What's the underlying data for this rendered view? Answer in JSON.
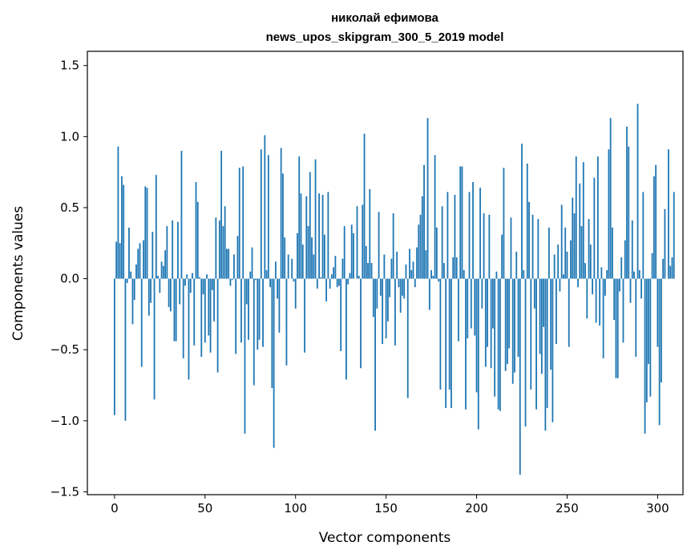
{
  "chart_data": {
    "type": "bar",
    "title_line1": "николай ефимова",
    "title_line2": "news_upos_skipgram_300_5_2019 model",
    "xlabel": "Vector components",
    "ylabel": "Components values",
    "xlim": [
      -15,
      314
    ],
    "ylim": [
      -1.52,
      1.6
    ],
    "xticks": [
      0,
      50,
      100,
      150,
      200,
      250,
      300
    ],
    "yticks": [
      -1.5,
      -1.0,
      -0.5,
      0.0,
      0.5,
      1.0,
      1.5
    ],
    "ytick_labels": [
      "−1.5",
      "−1.0",
      "−0.5",
      "0.0",
      "0.5",
      "1.0",
      "1.5"
    ],
    "bar_color": "#1f77b4",
    "values": [
      -0.96,
      0.26,
      0.93,
      0.25,
      0.72,
      0.66,
      -1.0,
      -0.03,
      0.36,
      0.05,
      -0.32,
      -0.15,
      0.1,
      0.21,
      0.25,
      -0.62,
      0.27,
      0.65,
      0.64,
      -0.26,
      -0.17,
      0.33,
      -0.85,
      0.73,
      0.02,
      -0.1,
      0.12,
      0.09,
      0.2,
      0.37,
      -0.2,
      -0.23,
      0.41,
      -0.44,
      -0.44,
      0.4,
      -0.18,
      0.9,
      -0.56,
      -0.05,
      0.03,
      -0.71,
      -0.1,
      0.04,
      -0.47,
      0.68,
      0.54,
      0.01,
      -0.55,
      -0.11,
      -0.45,
      0.03,
      -0.4,
      -0.52,
      -0.08,
      -0.3,
      0.43,
      -0.66,
      0.41,
      0.9,
      0.37,
      0.51,
      0.21,
      0.21,
      -0.05,
      -0.01,
      0.17,
      -0.53,
      0.3,
      0.78,
      -0.45,
      0.79,
      -1.09,
      -0.18,
      -0.43,
      0.05,
      0.22,
      -0.75,
      -0.01,
      -0.5,
      -0.43,
      0.91,
      -0.48,
      1.01,
      0.06,
      0.87,
      -0.06,
      -0.77,
      -1.19,
      0.12,
      -0.14,
      -0.38,
      0.92,
      0.74,
      0.29,
      -0.61,
      0.17,
      0.0,
      0.14,
      -0.02,
      -0.21,
      0.32,
      0.86,
      0.6,
      0.24,
      -0.52,
      0.58,
      0.37,
      0.75,
      0.29,
      0.17,
      0.84,
      -0.07,
      0.6,
      0.01,
      0.59,
      0.31,
      -0.16,
      0.61,
      -0.07,
      0.03,
      0.08,
      0.16,
      -0.06,
      -0.05,
      -0.51,
      0.14,
      0.37,
      -0.71,
      -0.04,
      0.04,
      0.38,
      0.32,
      0.0,
      0.51,
      0.02,
      -0.63,
      0.52,
      1.02,
      0.23,
      0.11,
      0.63,
      0.11,
      -0.27,
      -1.07,
      -0.21,
      0.47,
      -0.12,
      -0.46,
      0.17,
      -0.42,
      -0.3,
      -0.13,
      0.14,
      0.46,
      -0.47,
      0.19,
      -0.06,
      -0.24,
      -0.12,
      -0.14,
      0.1,
      -0.84,
      0.21,
      0.06,
      0.12,
      -0.06,
      0.22,
      0.38,
      0.45,
      0.58,
      0.8,
      0.2,
      1.13,
      -0.22,
      0.06,
      0.02,
      0.87,
      0.36,
      -0.02,
      -0.78,
      0.51,
      0.11,
      -0.91,
      0.61,
      -0.78,
      -0.91,
      0.15,
      0.59,
      0.15,
      -0.44,
      0.79,
      0.79,
      0.06,
      -0.92,
      -0.42,
      0.61,
      -0.35,
      0.68,
      -0.4,
      -0.8,
      -1.06,
      0.64,
      -0.21,
      0.46,
      -0.62,
      -0.48,
      0.45,
      -0.63,
      -0.35,
      -0.83,
      0.05,
      -0.92,
      -0.93,
      0.31,
      0.78,
      -0.65,
      -0.6,
      -0.49,
      0.43,
      -0.74,
      -0.66,
      0.19,
      -0.55,
      -1.38,
      0.95,
      0.06,
      -1.04,
      0.81,
      0.54,
      -0.78,
      0.45,
      -0.21,
      -0.92,
      0.42,
      -0.53,
      -0.67,
      -0.34,
      -1.07,
      -0.91,
      0.36,
      -0.64,
      -1.01,
      0.17,
      -0.46,
      0.24,
      -0.09,
      0.52,
      0.03,
      0.36,
      0.19,
      -0.48,
      0.27,
      0.57,
      0.46,
      0.86,
      -0.06,
      0.67,
      0.37,
      0.82,
      0.11,
      -0.28,
      0.42,
      0.24,
      -0.11,
      0.71,
      -0.31,
      0.86,
      -0.33,
      0.08,
      -0.56,
      -0.12,
      0.06,
      0.91,
      1.13,
      0.36,
      -0.29,
      -0.7,
      -0.7,
      -0.09,
      0.15,
      -0.45,
      0.27,
      1.07,
      0.93,
      -0.17,
      0.41,
      0.05,
      -0.55,
      1.23,
      0.06,
      -0.14,
      0.61,
      -1.09,
      -0.87,
      -0.6,
      -0.83,
      0.18,
      0.72,
      0.8,
      -0.48,
      -1.03,
      -0.73,
      0.14,
      0.49,
      0.0,
      0.91,
      0.09,
      0.15,
      0.61
    ]
  }
}
